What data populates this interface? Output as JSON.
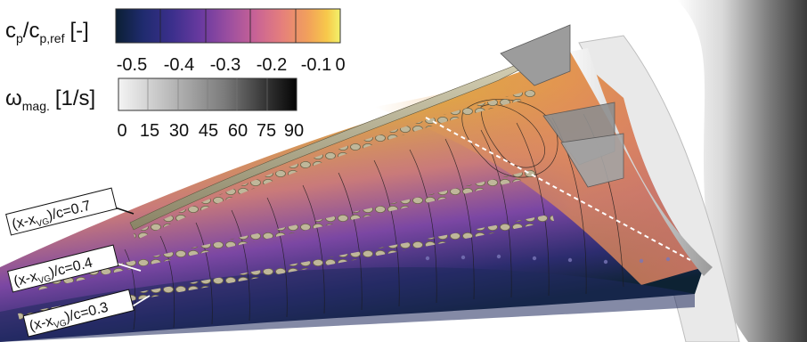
{
  "legend_cp": {
    "base": "c",
    "sub1": "p",
    "mid": "/c",
    "sub2": "p,ref",
    "unit": "[-]",
    "ticks": [
      "-0.5",
      "-0.4",
      "-0.3",
      "-0.2",
      "-0.1",
      "0"
    ],
    "colors": [
      "#0b1f33",
      "#1f2b6e",
      "#3b2f8c",
      "#6a3aa0",
      "#9a4ea0",
      "#c86296",
      "#e57f7c",
      "#f2a25a",
      "#f7c84b",
      "#f2f26a"
    ]
  },
  "legend_omega": {
    "base": "ω",
    "sub": "mag.",
    "unit": "[1/s]",
    "ticks": [
      "0",
      "15",
      "30",
      "45",
      "60",
      "75",
      "90"
    ],
    "colors": [
      "#f4f4f4",
      "#d6d6d6",
      "#b3b3b3",
      "#8e8e8e",
      "#6a6a6a",
      "#444444",
      "#1e1e1e",
      "#050505"
    ]
  },
  "callouts": [
    {
      "prefix": "(x-x",
      "sub": "VG",
      "suffix": ")/c=0.7"
    },
    {
      "prefix": "(x-x",
      "sub": "VG",
      "suffix": ")/c=0.4"
    },
    {
      "prefix": "(x-x",
      "sub": "VG",
      "suffix": ")/c=0.3"
    }
  ]
}
